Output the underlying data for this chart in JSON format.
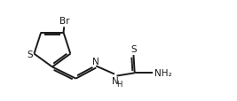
{
  "bg_color": "#ffffff",
  "line_color": "#1a1a1a",
  "line_width": 1.4,
  "font_size": 7.5,
  "figsize": [
    2.67,
    1.15
  ],
  "dpi": 100,
  "xlim": [
    0.0,
    10.5
  ],
  "ylim": [
    0.5,
    4.5
  ]
}
